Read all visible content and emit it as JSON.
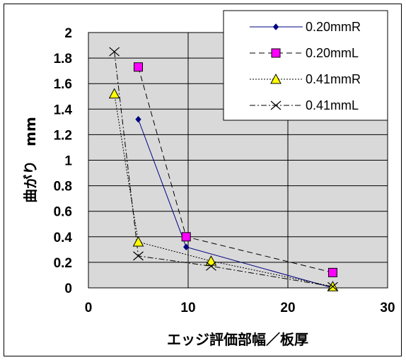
{
  "chart_data": {
    "type": "line",
    "xlabel": "エッジ評価部幅／板厚",
    "ylabel": "曲がり　mm",
    "xlim": [
      0,
      30
    ],
    "ylim": [
      0,
      2
    ],
    "x_ticks": [
      "0",
      "10",
      "20",
      "30"
    ],
    "y_ticks": [
      "0",
      "0.2",
      "0.4",
      "0.6",
      "0.8",
      "1",
      "1.2",
      "1.4",
      "1.6",
      "1.8",
      "2"
    ],
    "grid": "horizontal and vertical major gridlines",
    "plot_background": "#d9d9d9",
    "legend_position": "top-right",
    "series": [
      {
        "name": "0.20mmR",
        "color": "#000080",
        "marker": "diamond",
        "marker_fill": "#000080",
        "line": "solid",
        "x": [
          5.0,
          9.8,
          24.5
        ],
        "y": [
          1.32,
          0.32,
          0.0
        ]
      },
      {
        "name": "0.20mmL",
        "color": "#000000",
        "marker": "square",
        "marker_fill": "#ff00ff",
        "line": "dashed",
        "x": [
          5.0,
          9.8,
          24.5
        ],
        "y": [
          1.73,
          0.4,
          0.12
        ]
      },
      {
        "name": "0.41mmR",
        "color": "#000000",
        "marker": "triangle",
        "marker_fill": "#ffff00",
        "line": "dotted",
        "x": [
          2.6,
          5.0,
          12.3,
          24.5
        ],
        "y": [
          1.52,
          0.36,
          0.21,
          0.01
        ]
      },
      {
        "name": "0.41mmL",
        "color": "#000000",
        "marker": "x",
        "marker_fill": "none",
        "line": "dashdot",
        "x": [
          2.6,
          5.0,
          12.3,
          24.5
        ],
        "y": [
          1.85,
          0.25,
          0.17,
          0.01
        ]
      }
    ]
  }
}
